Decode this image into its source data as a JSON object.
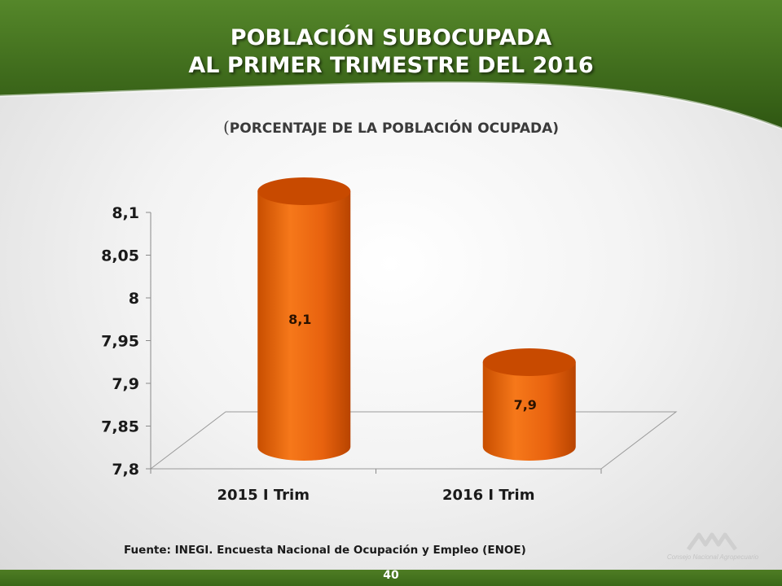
{
  "slide": {
    "title_line1": "POBLACIÓN SUBOCUPADA",
    "title_line2": "AL PRIMER TRIMESTRE DEL 2016",
    "subtitle_open": "(",
    "subtitle_text": "PORCENTAJE DE LA POBLACIÓN OCUPADA)",
    "source": "Fuente: INEGI. Encuesta Nacional de Ocupación y Empleo (ENOE)",
    "page_number": "40",
    "logo_text": "Consejo Nacional Agropecuario"
  },
  "colors": {
    "header_green": "#3f6b1a",
    "bar_front": "#e8620e",
    "bar_top": "#c84a00",
    "footer_green": "#4f7d24"
  },
  "chart_data": {
    "type": "bar",
    "style": "3d-cylinder",
    "categories": [
      "2015 I Trim",
      "2016 I Trim"
    ],
    "values": [
      8.1,
      7.9
    ],
    "data_labels": [
      "8,1",
      "7,9"
    ],
    "ylim": [
      7.8,
      8.1
    ],
    "yticks": [
      7.8,
      7.85,
      7.9,
      7.95,
      8,
      8.05,
      8.1
    ],
    "ytick_labels": [
      "7,8",
      "7,85",
      "7,9",
      "7,95",
      "8",
      "8,05",
      "8,1"
    ],
    "legend": "none",
    "grid": false
  }
}
